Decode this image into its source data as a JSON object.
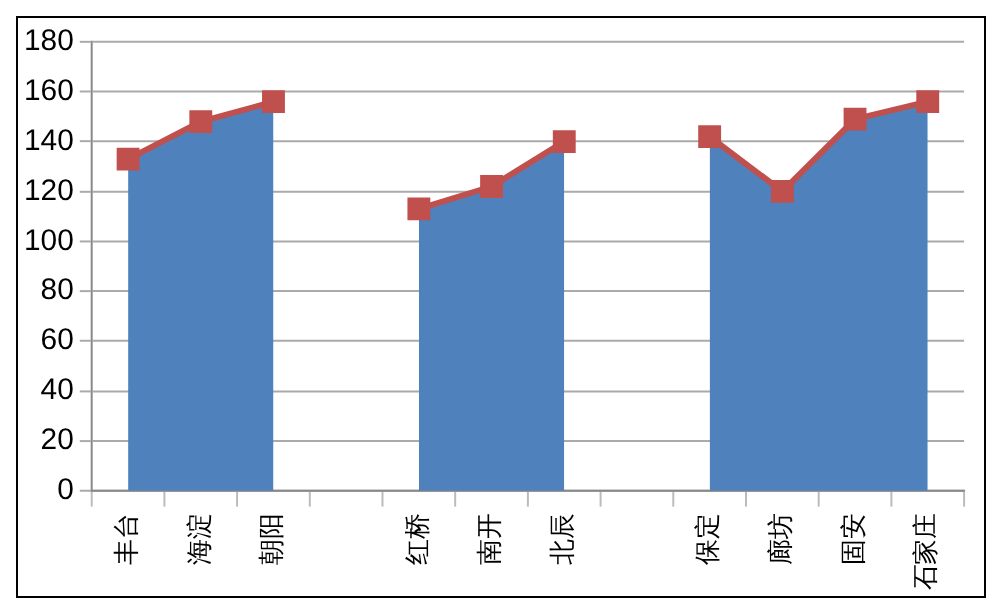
{
  "chart_data": {
    "type": "area",
    "categories": [
      "丰台",
      "海淀",
      "朝阳",
      null,
      "红桥",
      "南开",
      "北辰",
      null,
      "保定",
      "廊坊",
      "固安",
      "石家庄"
    ],
    "series": [
      {
        "type": "area",
        "color": "#4f81bd",
        "values": [
          133,
          148,
          156,
          null,
          113,
          122,
          140,
          null,
          142,
          120,
          149,
          156
        ]
      },
      {
        "type": "line",
        "color": "#c0504d",
        "marker": "square",
        "values": [
          133,
          148,
          156,
          null,
          113,
          122,
          140,
          null,
          142,
          120,
          149,
          156
        ]
      }
    ],
    "ylim": [
      0,
      180
    ],
    "yticks": [
      0,
      20,
      40,
      60,
      80,
      100,
      120,
      140,
      160,
      180
    ],
    "grid": "y",
    "legend": false
  }
}
